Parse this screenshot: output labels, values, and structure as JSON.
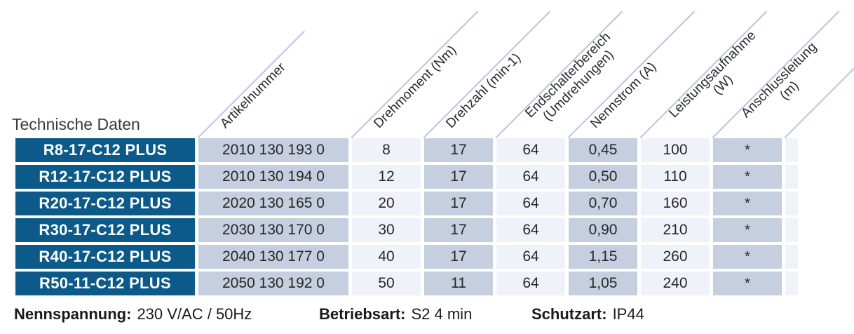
{
  "title": "Technische Daten",
  "columns": [
    {
      "name": "artikelnummer",
      "lines": [
        "Artikelnummer",
        ""
      ]
    },
    {
      "name": "drehmoment",
      "lines": [
        "Drehmoment (Nm)",
        ""
      ]
    },
    {
      "name": "drehzahl",
      "lines": [
        "Drehzahl (min-1)",
        ""
      ]
    },
    {
      "name": "endschalterbereich",
      "lines": [
        "Endschalterbereich",
        "(Umdrehungen)"
      ]
    },
    {
      "name": "nennstrom",
      "lines": [
        "Nennstrom (A)",
        ""
      ]
    },
    {
      "name": "leistungsaufnahme",
      "lines": [
        "Leistungsaufnahme",
        "(W)"
      ]
    },
    {
      "name": "anschlussleitung",
      "lines": [
        "Anschlussleitung",
        "(m)"
      ]
    }
  ],
  "rows": [
    {
      "model": "R8-17-C12 PLUS",
      "values": [
        "2010 130 193 0",
        "8",
        "17",
        "64",
        "0,45",
        "100",
        "*"
      ]
    },
    {
      "model": "R12-17-C12 PLUS",
      "values": [
        "2010 130 194 0",
        "12",
        "17",
        "64",
        "0,50",
        "110",
        "*"
      ]
    },
    {
      "model": "R20-17-C12 PLUS",
      "values": [
        "2020 130 165 0",
        "20",
        "17",
        "64",
        "0,70",
        "160",
        "*"
      ]
    },
    {
      "model": "R30-17-C12 PLUS",
      "values": [
        "2030 130 170 0",
        "30",
        "17",
        "64",
        "0,90",
        "210",
        "*"
      ]
    },
    {
      "model": "R40-17-C12 PLUS",
      "values": [
        "2040 130 177 0",
        "40",
        "17",
        "64",
        "1,15",
        "260",
        "*"
      ]
    },
    {
      "model": "R50-11-C12 PLUS",
      "values": [
        "2050 130 192 0",
        "50",
        "11",
        "64",
        "1,05",
        "240",
        "*"
      ]
    }
  ],
  "footer": [
    {
      "label": "Nennspannung:",
      "value": "230 V/AC / 50Hz"
    },
    {
      "label": "Betriebsart:",
      "value": "S2 4 min"
    },
    {
      "label": "Schutzart:",
      "value": "IP44"
    }
  ],
  "colors": {
    "row_label_bg": "#0b5a89",
    "row_label_text": "#ffffff",
    "column_shaded_bg": "#c6cfdf",
    "column_light_bg": "#eff3f9",
    "divider_line": "#b9c6dc",
    "body_text": "#262626"
  }
}
